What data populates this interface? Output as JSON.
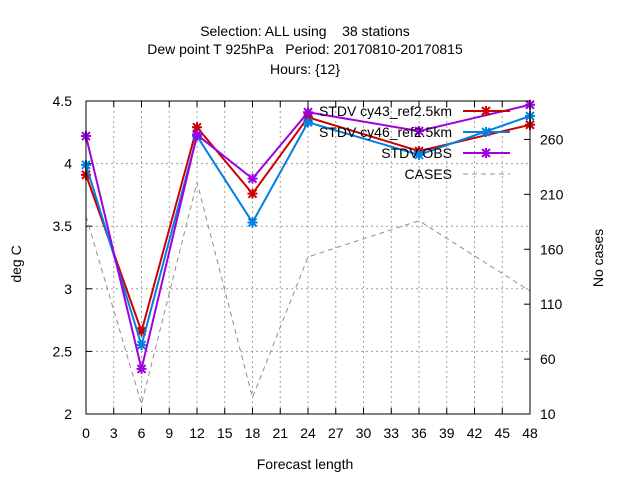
{
  "chart_data": {
    "type": "line",
    "title_lines": [
      "Selection: ALL using    38 stations",
      "Dew point T 925hPa   Period: 20170810-20170815",
      "Hours: {12}"
    ],
    "xlabel": "Forecast length",
    "ylabel": "deg C",
    "y2label": "No cases",
    "x_ticks": [
      0,
      3,
      6,
      9,
      12,
      15,
      18,
      21,
      24,
      27,
      30,
      33,
      36,
      39,
      42,
      45,
      48
    ],
    "y_ticks": [
      "2",
      "2.5",
      "3",
      "3.5",
      "4",
      "4.5"
    ],
    "y2_ticks": [
      "10",
      "60",
      "110",
      "160",
      "210",
      "260"
    ],
    "xlim": [
      0,
      48
    ],
    "ylim": [
      2,
      4.5
    ],
    "y2lim": [
      10,
      295
    ],
    "grid": true,
    "legend_position": "top-right",
    "x": [
      0,
      6,
      12,
      18,
      24,
      36,
      48
    ],
    "series": [
      {
        "name": "STDV cy43_ref2.5km",
        "axis": "y",
        "color": "#cc0000",
        "marker": "x",
        "values": [
          3.91,
          2.66,
          4.29,
          3.76,
          4.37,
          4.1,
          4.31
        ]
      },
      {
        "name": "STDV cy46_ref2.5km",
        "axis": "y",
        "color": "#0080e0",
        "marker": "x",
        "values": [
          3.99,
          2.55,
          4.22,
          3.53,
          4.33,
          4.07,
          4.38
        ]
      },
      {
        "name": "STDV OBS",
        "axis": "y",
        "color": "#a000e0",
        "marker": "x",
        "values": [
          4.22,
          2.36,
          4.23,
          3.88,
          4.41,
          4.26,
          4.47
        ]
      },
      {
        "name": "CASES",
        "axis": "y2",
        "color": "#909090",
        "dashed": true,
        "values": [
          190,
          19,
          221,
          25,
          153,
          186,
          122
        ]
      }
    ]
  }
}
